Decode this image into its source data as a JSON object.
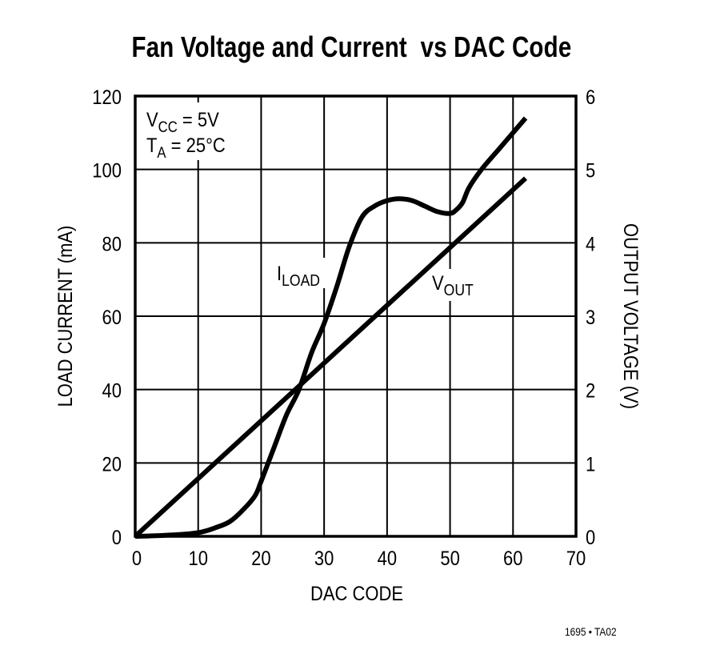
{
  "title": "Fan Voltage and Current  vs DAC Code",
  "footnote": "1695 • TA02",
  "conditions": {
    "line1_main": "V",
    "line1_sub": "CC",
    "line1_rest": " = 5V",
    "line2_main": "T",
    "line2_sub": "A",
    "line2_rest": " = 25°C"
  },
  "labels": {
    "iload_main": "I",
    "iload_sub": "LOAD",
    "vout_main": "V",
    "vout_sub": "OUT"
  },
  "axes": {
    "x_label": "DAC CODE",
    "y_left_label": "LOAD CURRENT (mA)",
    "y_right_label": "OUTPUT VOLTAGE (V)",
    "x_ticks": [
      "0",
      "10",
      "20",
      "30",
      "40",
      "50",
      "60",
      "70"
    ],
    "y_left_ticks": [
      "0",
      "20",
      "40",
      "60",
      "80",
      "100",
      "120"
    ],
    "y_right_ticks": [
      "0",
      "1",
      "2",
      "3",
      "4",
      "5",
      "6"
    ]
  },
  "chart_data": {
    "type": "line",
    "title": "Fan Voltage and Current  vs DAC Code",
    "xlabel": "DAC CODE",
    "ylabel": "LOAD CURRENT (mA)",
    "y2label": "OUTPUT VOLTAGE (V)",
    "xlim": [
      0,
      70
    ],
    "ylim": [
      0,
      120
    ],
    "y2lim": [
      0,
      6
    ],
    "x_ticks": [
      0,
      10,
      20,
      30,
      40,
      50,
      60,
      70
    ],
    "y_ticks": [
      0,
      20,
      40,
      60,
      80,
      100,
      120
    ],
    "y2_ticks": [
      0,
      1,
      2,
      3,
      4,
      5,
      6
    ],
    "grid": true,
    "annotations": [
      "VCC = 5V",
      "TA = 25°C"
    ],
    "series": [
      {
        "name": "ILOAD",
        "axis": "left",
        "unit": "mA",
        "x": [
          0,
          5,
          10,
          13,
          15,
          17,
          19,
          20,
          22,
          24,
          26,
          28,
          30,
          32,
          34,
          36,
          38,
          40,
          42,
          44,
          46,
          48,
          50,
          51,
          52,
          53,
          55,
          58,
          60,
          62
        ],
        "values": [
          0,
          0.3,
          1,
          2.5,
          4,
          7,
          11,
          15,
          24,
          33,
          40,
          50,
          58,
          68,
          79,
          87,
          90,
          91.5,
          92,
          91.5,
          90,
          88.5,
          88,
          89,
          91,
          95,
          100,
          106,
          110,
          114
        ]
      },
      {
        "name": "VOUT",
        "axis": "right",
        "unit": "V",
        "x": [
          0,
          10,
          20,
          26,
          30,
          40,
          50,
          60,
          62
        ],
        "values": [
          0,
          0.79,
          1.57,
          2.0,
          2.36,
          3.15,
          3.94,
          4.72,
          4.88
        ]
      }
    ]
  }
}
